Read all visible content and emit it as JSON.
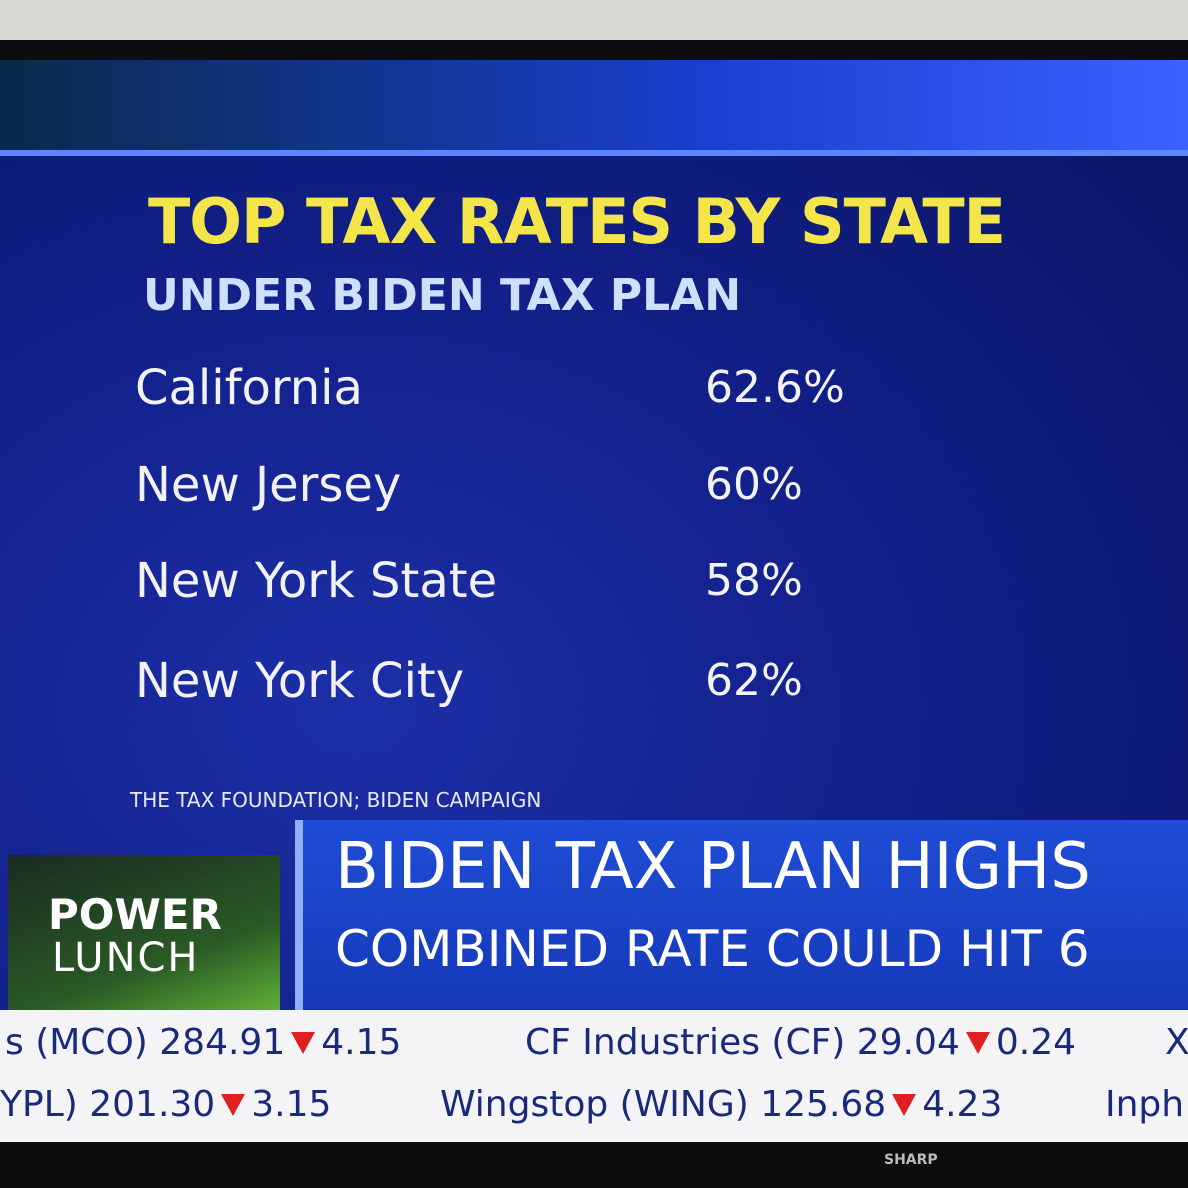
{
  "header": {
    "title": "TOP TAX RATES BY STATE",
    "subtitle": "UNDER BIDEN TAX PLAN"
  },
  "table": {
    "rows": [
      [
        "California",
        "62.6%"
      ],
      [
        "New Jersey",
        "60%"
      ],
      [
        "New York State",
        "58%"
      ],
      [
        "New York City",
        "62%"
      ]
    ]
  },
  "source": "THE TAX FOUNDATION; BIDEN CAMPAIGN",
  "logo": {
    "line1": "POWER",
    "line2": "LUNCH"
  },
  "headline": {
    "title": "BIDEN TAX PLAN HIGHS",
    "subtitle": "COMBINED RATE COULD HIT 6"
  },
  "ticker": {
    "rows": [
      [
        {
          "text": "s (MCO) 284.91",
          "change": "4.15"
        },
        {
          "text": "CF Industries (CF) 29.04",
          "change": "0.24"
        },
        {
          "text": "X",
          "change": null
        }
      ],
      [
        {
          "text": "YPL) 201.30",
          "change": "3.15"
        },
        {
          "text": "Wingstop (WING) 125.68",
          "change": "4.23"
        },
        {
          "text": "Inph",
          "change": null
        }
      ]
    ]
  },
  "brand": "SHARP"
}
